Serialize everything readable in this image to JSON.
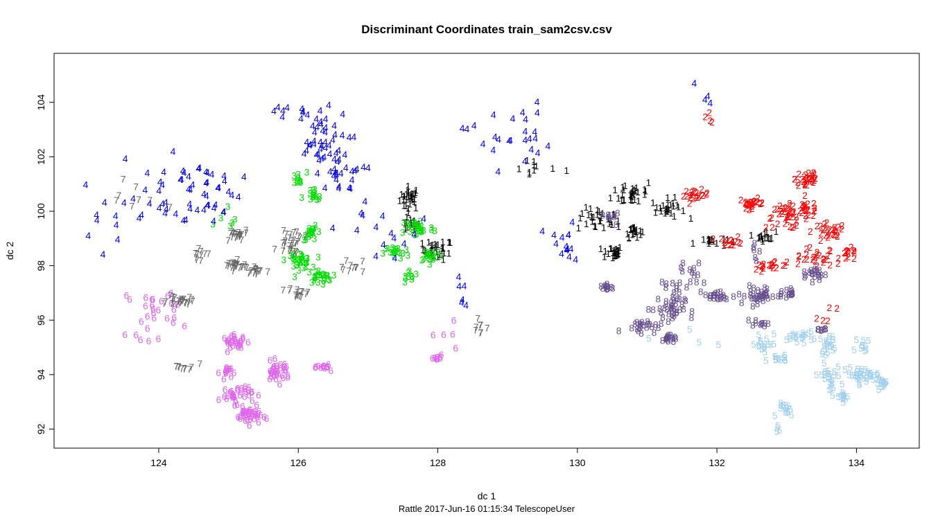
{
  "chart_data": {
    "type": "scatter",
    "title": "Discriminant Coordinates train_sam2csv.csv",
    "xlabel": "dc 1",
    "ylabel": "dc 2",
    "footer": "Rattle 2017-Jun-16 01:15:34 TelescopeUser",
    "xlim": [
      122.5,
      134.9
    ],
    "ylim": [
      91.3,
      105.8
    ],
    "x_ticks": [
      124,
      126,
      128,
      130,
      132,
      134
    ],
    "y_ticks": [
      92,
      94,
      96,
      98,
      100,
      102,
      104
    ],
    "grid": false,
    "legend": "none",
    "marker": "class label digit",
    "series": [
      {
        "label": "1",
        "color": "#000000",
        "clusters": [
          {
            "x": 127.6,
            "y": 100.5,
            "sx": 0.12,
            "sy": 0.35,
            "n": 30
          },
          {
            "x": 128.0,
            "y": 98.6,
            "sx": 0.18,
            "sy": 0.3,
            "n": 30
          },
          {
            "x": 127.6,
            "y": 99.5,
            "sx": 0.12,
            "sy": 0.2,
            "n": 15
          },
          {
            "x": 129.4,
            "y": 101.6,
            "sx": 0.35,
            "sy": 0.3,
            "n": 10
          },
          {
            "x": 130.3,
            "y": 99.7,
            "sx": 0.25,
            "sy": 0.35,
            "n": 30
          },
          {
            "x": 130.5,
            "y": 98.5,
            "sx": 0.12,
            "sy": 0.2,
            "n": 25
          },
          {
            "x": 130.8,
            "y": 100.7,
            "sx": 0.25,
            "sy": 0.4,
            "n": 30
          },
          {
            "x": 130.8,
            "y": 99.3,
            "sx": 0.1,
            "sy": 0.2,
            "n": 20
          },
          {
            "x": 131.3,
            "y": 100.1,
            "sx": 0.2,
            "sy": 0.3,
            "n": 25
          },
          {
            "x": 131.9,
            "y": 98.9,
            "sx": 0.2,
            "sy": 0.15,
            "n": 15
          },
          {
            "x": 132.7,
            "y": 99.1,
            "sx": 0.12,
            "sy": 0.15,
            "n": 15
          }
        ]
      },
      {
        "label": "2",
        "color": "#ff0000",
        "clusters": [
          {
            "x": 131.7,
            "y": 100.6,
            "sx": 0.15,
            "sy": 0.15,
            "n": 20
          },
          {
            "x": 132.5,
            "y": 100.3,
            "sx": 0.15,
            "sy": 0.15,
            "n": 25
          },
          {
            "x": 133.0,
            "y": 99.8,
            "sx": 0.25,
            "sy": 0.35,
            "n": 40
          },
          {
            "x": 133.3,
            "y": 101.2,
            "sx": 0.15,
            "sy": 0.35,
            "n": 30
          },
          {
            "x": 133.3,
            "y": 100.1,
            "sx": 0.15,
            "sy": 0.25,
            "n": 20
          },
          {
            "x": 133.6,
            "y": 99.2,
            "sx": 0.2,
            "sy": 0.3,
            "n": 25
          },
          {
            "x": 133.4,
            "y": 98.3,
            "sx": 0.25,
            "sy": 0.3,
            "n": 25
          },
          {
            "x": 133.9,
            "y": 98.4,
            "sx": 0.12,
            "sy": 0.2,
            "n": 15
          },
          {
            "x": 132.8,
            "y": 98.0,
            "sx": 0.25,
            "sy": 0.2,
            "n": 20
          },
          {
            "x": 132.2,
            "y": 98.9,
            "sx": 0.15,
            "sy": 0.15,
            "n": 15
          },
          {
            "x": 131.9,
            "y": 103.5,
            "sx": 0.05,
            "sy": 0.2,
            "n": 4
          },
          {
            "x": 133.6,
            "y": 96.2,
            "sx": 0.15,
            "sy": 0.3,
            "n": 5
          }
        ]
      },
      {
        "label": "3",
        "color": "#00dd00",
        "clusters": [
          {
            "x": 126.2,
            "y": 99.2,
            "sx": 0.12,
            "sy": 0.2,
            "n": 20
          },
          {
            "x": 126.0,
            "y": 98.2,
            "sx": 0.15,
            "sy": 0.25,
            "n": 35
          },
          {
            "x": 126.3,
            "y": 97.6,
            "sx": 0.15,
            "sy": 0.2,
            "n": 25
          },
          {
            "x": 126.0,
            "y": 101.2,
            "sx": 0.1,
            "sy": 0.2,
            "n": 10
          },
          {
            "x": 126.2,
            "y": 100.5,
            "sx": 0.12,
            "sy": 0.3,
            "n": 15
          },
          {
            "x": 127.4,
            "y": 98.5,
            "sx": 0.15,
            "sy": 0.2,
            "n": 20
          },
          {
            "x": 127.7,
            "y": 99.4,
            "sx": 0.2,
            "sy": 0.3,
            "n": 30
          },
          {
            "x": 127.9,
            "y": 98.4,
            "sx": 0.15,
            "sy": 0.2,
            "n": 20
          },
          {
            "x": 127.6,
            "y": 97.6,
            "sx": 0.1,
            "sy": 0.2,
            "n": 10
          },
          {
            "x": 125.0,
            "y": 99.5,
            "sx": 0.2,
            "sy": 0.6,
            "n": 6
          }
        ]
      },
      {
        "label": "4",
        "color": "#0000ee",
        "clusters": [
          {
            "x": 124.0,
            "y": 100.8,
            "sx": 0.6,
            "sy": 1.3,
            "n": 30
          },
          {
            "x": 124.7,
            "y": 100.8,
            "sx": 0.4,
            "sy": 1.0,
            "n": 30
          },
          {
            "x": 126.3,
            "y": 102.5,
            "sx": 0.35,
            "sy": 1.0,
            "n": 45
          },
          {
            "x": 126.6,
            "y": 101.3,
            "sx": 0.3,
            "sy": 0.5,
            "n": 20
          },
          {
            "x": 126.0,
            "y": 103.7,
            "sx": 0.3,
            "sy": 0.4,
            "n": 10
          },
          {
            "x": 129.0,
            "y": 102.8,
            "sx": 0.5,
            "sy": 1.0,
            "n": 25
          },
          {
            "x": 129.8,
            "y": 98.7,
            "sx": 0.25,
            "sy": 0.7,
            "n": 15
          },
          {
            "x": 127.3,
            "y": 99.3,
            "sx": 0.6,
            "sy": 1.1,
            "n": 15
          },
          {
            "x": 131.8,
            "y": 104.0,
            "sx": 0.1,
            "sy": 0.8,
            "n": 4
          },
          {
            "x": 128.4,
            "y": 96.8,
            "sx": 0.25,
            "sy": 0.7,
            "n": 6
          },
          {
            "x": 123.3,
            "y": 99.0,
            "sx": 0.4,
            "sy": 1.2,
            "n": 6
          }
        ]
      },
      {
        "label": "5",
        "color": "#a0d0ee",
        "clusters": [
          {
            "x": 132.7,
            "y": 95.0,
            "sx": 0.2,
            "sy": 0.5,
            "n": 20
          },
          {
            "x": 132.9,
            "y": 94.6,
            "sx": 0.1,
            "sy": 0.1,
            "n": 10
          },
          {
            "x": 133.2,
            "y": 95.4,
            "sx": 0.15,
            "sy": 0.15,
            "n": 20
          },
          {
            "x": 133.6,
            "y": 95.1,
            "sx": 0.1,
            "sy": 0.3,
            "n": 20
          },
          {
            "x": 133.6,
            "y": 93.9,
            "sx": 0.15,
            "sy": 0.4,
            "n": 25
          },
          {
            "x": 133.8,
            "y": 93.2,
            "sx": 0.08,
            "sy": 0.15,
            "n": 15
          },
          {
            "x": 134.1,
            "y": 94.0,
            "sx": 0.2,
            "sy": 0.2,
            "n": 35
          },
          {
            "x": 134.1,
            "y": 95.0,
            "sx": 0.1,
            "sy": 0.3,
            "n": 10
          },
          {
            "x": 134.4,
            "y": 93.7,
            "sx": 0.1,
            "sy": 0.15,
            "n": 15
          },
          {
            "x": 133.0,
            "y": 92.7,
            "sx": 0.1,
            "sy": 0.2,
            "n": 15
          },
          {
            "x": 132.9,
            "y": 92.0,
            "sx": 0.05,
            "sy": 0.2,
            "n": 4
          },
          {
            "x": 131.7,
            "y": 95.3,
            "sx": 0.3,
            "sy": 0.4,
            "n": 4
          }
        ]
      },
      {
        "label": "6",
        "color": "#e066ee",
        "clusters": [
          {
            "x": 123.9,
            "y": 96.3,
            "sx": 0.3,
            "sy": 0.8,
            "n": 25
          },
          {
            "x": 124.2,
            "y": 96.6,
            "sx": 0.1,
            "sy": 0.3,
            "n": 5
          },
          {
            "x": 125.1,
            "y": 95.2,
            "sx": 0.15,
            "sy": 0.2,
            "n": 30
          },
          {
            "x": 125.0,
            "y": 94.1,
            "sx": 0.1,
            "sy": 0.2,
            "n": 15
          },
          {
            "x": 125.1,
            "y": 93.3,
            "sx": 0.2,
            "sy": 0.3,
            "n": 35
          },
          {
            "x": 125.3,
            "y": 92.5,
            "sx": 0.15,
            "sy": 0.25,
            "n": 40
          },
          {
            "x": 125.7,
            "y": 94.1,
            "sx": 0.15,
            "sy": 0.3,
            "n": 35
          },
          {
            "x": 126.4,
            "y": 94.3,
            "sx": 0.1,
            "sy": 0.1,
            "n": 15
          },
          {
            "x": 128.0,
            "y": 94.6,
            "sx": 0.05,
            "sy": 0.1,
            "n": 10
          },
          {
            "x": 128.1,
            "y": 95.3,
            "sx": 0.25,
            "sy": 0.4,
            "n": 5
          }
        ]
      },
      {
        "label": "7",
        "color": "#666666",
        "clusters": [
          {
            "x": 125.1,
            "y": 99.1,
            "sx": 0.15,
            "sy": 0.2,
            "n": 20
          },
          {
            "x": 125.1,
            "y": 98.0,
            "sx": 0.15,
            "sy": 0.15,
            "n": 25
          },
          {
            "x": 125.4,
            "y": 97.8,
            "sx": 0.12,
            "sy": 0.15,
            "n": 15
          },
          {
            "x": 124.3,
            "y": 96.7,
            "sx": 0.15,
            "sy": 0.15,
            "n": 25
          },
          {
            "x": 124.6,
            "y": 98.4,
            "sx": 0.1,
            "sy": 0.15,
            "n": 10
          },
          {
            "x": 125.9,
            "y": 98.9,
            "sx": 0.15,
            "sy": 0.4,
            "n": 30
          },
          {
            "x": 126.0,
            "y": 97.0,
            "sx": 0.12,
            "sy": 0.15,
            "n": 15
          },
          {
            "x": 126.7,
            "y": 98.0,
            "sx": 0.2,
            "sy": 0.2,
            "n": 10
          },
          {
            "x": 124.4,
            "y": 94.3,
            "sx": 0.15,
            "sy": 0.15,
            "n": 10
          },
          {
            "x": 128.6,
            "y": 95.8,
            "sx": 0.12,
            "sy": 0.3,
            "n": 8
          },
          {
            "x": 123.7,
            "y": 100.3,
            "sx": 0.6,
            "sy": 1.0,
            "n": 8
          }
        ]
      },
      {
        "label": "8",
        "color": "#664f8f",
        "clusters": [
          {
            "x": 130.9,
            "y": 95.8,
            "sx": 0.2,
            "sy": 0.2,
            "n": 20
          },
          {
            "x": 131.3,
            "y": 96.4,
            "sx": 0.2,
            "sy": 0.5,
            "n": 40
          },
          {
            "x": 131.3,
            "y": 95.3,
            "sx": 0.1,
            "sy": 0.15,
            "n": 15
          },
          {
            "x": 131.5,
            "y": 97.5,
            "sx": 0.2,
            "sy": 0.5,
            "n": 20
          },
          {
            "x": 132.0,
            "y": 96.9,
            "sx": 0.15,
            "sy": 0.15,
            "n": 20
          },
          {
            "x": 132.6,
            "y": 96.9,
            "sx": 0.25,
            "sy": 0.3,
            "n": 35
          },
          {
            "x": 132.6,
            "y": 95.9,
            "sx": 0.1,
            "sy": 0.1,
            "n": 10
          },
          {
            "x": 133.0,
            "y": 97.0,
            "sx": 0.1,
            "sy": 0.15,
            "n": 15
          },
          {
            "x": 133.4,
            "y": 97.7,
            "sx": 0.15,
            "sy": 0.2,
            "n": 20
          },
          {
            "x": 133.5,
            "y": 95.7,
            "sx": 0.05,
            "sy": 0.1,
            "n": 8
          },
          {
            "x": 130.4,
            "y": 97.2,
            "sx": 0.1,
            "sy": 0.1,
            "n": 12
          },
          {
            "x": 130.6,
            "y": 99.8,
            "sx": 0.15,
            "sy": 0.2,
            "n": 8
          },
          {
            "x": 132.6,
            "y": 98.5,
            "sx": 0.1,
            "sy": 0.5,
            "n": 6
          }
        ]
      }
    ]
  }
}
